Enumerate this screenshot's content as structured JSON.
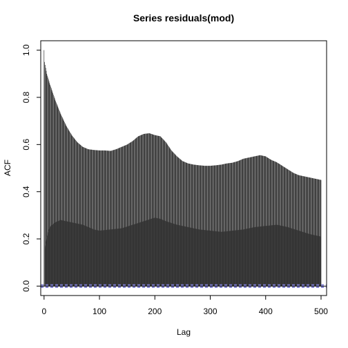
{
  "chart_data": {
    "type": "bar",
    "title": "Series  residuals(mod)",
    "xlabel": "Lag",
    "ylabel": "ACF",
    "xlim": [
      -6,
      510
    ],
    "ylim": [
      -0.04,
      1.04
    ],
    "xticks": [
      0,
      100,
      200,
      300,
      400,
      500
    ],
    "yticks": [
      0.0,
      0.2,
      0.4,
      0.6,
      0.8,
      1.0
    ],
    "xtick_labels": [
      "0",
      "100",
      "200",
      "300",
      "400",
      "500"
    ],
    "ytick_labels": [
      "0.0",
      "0.2",
      "0.4",
      "0.6",
      "0.8",
      "1.0"
    ],
    "max_lag": 500,
    "lag0_value": 1.0,
    "acf_profile": {
      "lags": [
        1,
        5,
        10,
        20,
        30,
        40,
        50,
        60,
        70,
        80,
        90,
        100,
        110,
        120,
        130,
        140,
        150,
        160,
        170,
        180,
        190,
        200,
        210,
        220,
        230,
        240,
        250,
        260,
        270,
        280,
        290,
        300,
        310,
        320,
        330,
        340,
        350,
        360,
        370,
        380,
        390,
        400,
        410,
        420,
        430,
        440,
        450,
        460,
        470,
        480,
        490,
        500
      ],
      "values": [
        0.95,
        0.9,
        0.86,
        0.79,
        0.73,
        0.68,
        0.64,
        0.61,
        0.59,
        0.58,
        0.577,
        0.575,
        0.575,
        0.573,
        0.58,
        0.59,
        0.6,
        0.615,
        0.635,
        0.645,
        0.648,
        0.64,
        0.635,
        0.61,
        0.575,
        0.55,
        0.53,
        0.52,
        0.515,
        0.512,
        0.51,
        0.51,
        0.512,
        0.515,
        0.52,
        0.523,
        0.53,
        0.54,
        0.545,
        0.55,
        0.555,
        0.55,
        0.535,
        0.525,
        0.51,
        0.495,
        0.48,
        0.47,
        0.465,
        0.46,
        0.455,
        0.45
      ]
    },
    "inner_band_profile": {
      "lags": [
        1,
        5,
        10,
        20,
        30,
        40,
        50,
        60,
        70,
        80,
        90,
        100,
        120,
        140,
        160,
        180,
        200,
        210,
        220,
        240,
        260,
        280,
        300,
        320,
        340,
        360,
        380,
        400,
        420,
        440,
        460,
        480,
        500
      ],
      "values": [
        0.15,
        0.21,
        0.25,
        0.27,
        0.28,
        0.275,
        0.27,
        0.265,
        0.26,
        0.25,
        0.24,
        0.235,
        0.24,
        0.245,
        0.26,
        0.275,
        0.29,
        0.285,
        0.275,
        0.26,
        0.25,
        0.24,
        0.235,
        0.23,
        0.235,
        0.24,
        0.25,
        0.255,
        0.26,
        0.25,
        0.235,
        0.22,
        0.21
      ]
    },
    "confidence_bound": 0.0046,
    "colors": {
      "bar": "#000000",
      "inner_band": "#333333",
      "ci_line": "#7b7bd0",
      "zero_line": "#000000"
    },
    "grid": false,
    "legend": "none"
  }
}
